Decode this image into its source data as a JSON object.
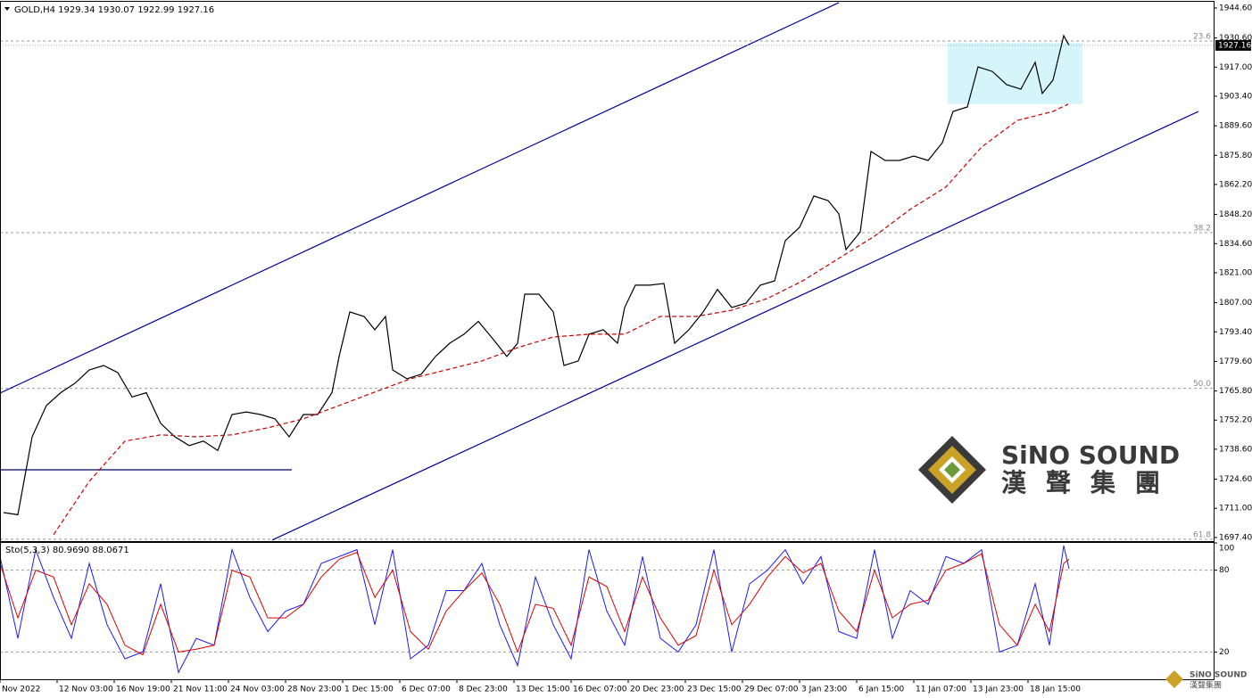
{
  "chart_data": [
    {
      "type": "line",
      "title": "GOLD,H4  1929.34 1930.07 1922.99 1927.16",
      "xlim": [
        0,
        340
      ],
      "ylim": [
        1695.7,
        1947.5
      ],
      "yticks": [
        {
          "value": 1944.6,
          "label": "1944.60"
        },
        {
          "value": 1930.6,
          "label": "1930.60"
        },
        {
          "value": 1917,
          "label": "1917.00"
        },
        {
          "value": 1903.4,
          "label": "1903.40"
        },
        {
          "value": 1889.6,
          "label": "1889.60"
        },
        {
          "value": 1875.8,
          "label": "1875.80"
        },
        {
          "value": 1862.2,
          "label": "1862.20"
        },
        {
          "value": 1848.2,
          "label": "1848.20"
        },
        {
          "value": 1834.6,
          "label": "1834.60"
        },
        {
          "value": 1821,
          "label": "1821.00"
        },
        {
          "value": 1807,
          "label": "1807.00"
        },
        {
          "value": 1793.4,
          "label": "1793.40"
        },
        {
          "value": 1779.6,
          "label": "1779.60"
        },
        {
          "value": 1765.8,
          "label": "1765.80"
        },
        {
          "value": 1752.2,
          "label": "1752.20"
        },
        {
          "value": 1738.6,
          "label": "1738.60"
        },
        {
          "value": 1724.6,
          "label": "1724.60"
        },
        {
          "value": 1711,
          "label": "1711.00"
        },
        {
          "value": 1697.4,
          "label": "1697.40"
        }
      ],
      "series": [
        {
          "color": "#000000",
          "dash": false,
          "x": [
            1,
            5,
            9,
            13,
            17,
            21,
            25,
            29,
            33,
            37,
            41,
            45,
            49,
            53,
            57,
            61,
            65,
            69,
            73,
            77,
            81,
            85,
            89,
            93,
            95,
            98,
            102,
            105,
            108,
            110,
            114,
            118,
            122,
            126,
            130,
            134,
            138,
            142,
            145,
            147,
            151,
            155,
            158,
            162,
            165,
            169,
            173,
            175,
            178,
            182,
            186,
            189,
            193,
            197,
            201,
            205,
            209,
            213,
            217,
            220,
            224,
            228,
            232,
            235,
            237,
            241,
            244,
            248,
            252,
            256,
            260,
            264,
            267,
            271,
            274,
            278,
            282,
            286,
            290,
            292,
            295,
            298,
            299.5
          ],
          "values": [
            1709,
            1708,
            1744.4,
            1759,
            1765,
            1769.4,
            1775.6,
            1777.7,
            1774.4,
            1763,
            1765,
            1750.7,
            1744.4,
            1740.3,
            1742.4,
            1738,
            1754.8,
            1756,
            1754.8,
            1752.8,
            1744.4,
            1754.8,
            1754.8,
            1765,
            1781.9,
            1802.7,
            1800.6,
            1794.4,
            1800.6,
            1775.6,
            1771.5,
            1773.6,
            1781.9,
            1788.1,
            1792.3,
            1798.3,
            1790.3,
            1781.9,
            1788.1,
            1811,
            1811,
            1802.7,
            1777.7,
            1779.8,
            1792.3,
            1794.4,
            1788.1,
            1804.8,
            1815.2,
            1815.2,
            1816,
            1788.1,
            1794.4,
            1802.7,
            1813.2,
            1804.8,
            1806.8,
            1815.2,
            1817.2,
            1836,
            1842.2,
            1856.8,
            1854.7,
            1848.5,
            1831.8,
            1840.1,
            1877.6,
            1873.4,
            1873.4,
            1875.5,
            1873.4,
            1881.7,
            1896.3,
            1898.4,
            1917.1,
            1915,
            1908.8,
            1906.7,
            1919.2,
            1904.7,
            1910.9,
            1931.7,
            1927.16
          ]
        },
        {
          "color": "#cc0000",
          "dash": true,
          "x": [
            15,
            25,
            35,
            45,
            55,
            65,
            75,
            85,
            95,
            105,
            115,
            125,
            135,
            145,
            155,
            165,
            175,
            185,
            195,
            205,
            215,
            225,
            235,
            245,
            255,
            265,
            275,
            285,
            295,
            299.25
          ],
          "values": [
            1698.7,
            1723.6,
            1742.4,
            1745.3,
            1744.4,
            1745.3,
            1748.6,
            1752.8,
            1759,
            1765.3,
            1771.5,
            1775.6,
            1779.8,
            1786,
            1791,
            1792.3,
            1792.3,
            1800.6,
            1800.6,
            1803.5,
            1809,
            1817.3,
            1827.7,
            1838.1,
            1850.6,
            1861,
            1879.7,
            1892.1,
            1896.3,
            1899.7
          ]
        }
      ],
      "trendlines": [
        {
          "color": "#0000a0",
          "x": [
            0,
            235
          ],
          "values": [
            1764.8,
            1947.1
          ]
        },
        {
          "color": "#0000a0",
          "x": [
            76.25,
            335.75
          ],
          "values": [
            1696.2,
            1896.3
          ]
        },
        {
          "color": "#00005a",
          "x": [
            0,
            81.75
          ],
          "values": [
            1729,
            1729
          ]
        }
      ],
      "zone": {
        "color": "#d6f5fb",
        "x": [
          265.5,
          303.25
        ],
        "values": [
          1928.4,
          1899.7
        ]
      },
      "levels": [
        {
          "label": "23.6",
          "value": 1929.2
        },
        {
          "label": "38.2",
          "value": 1839.7
        },
        {
          "label": "50.0",
          "value": 1767
        },
        {
          "label": "61.8",
          "value": 1696.6
        }
      ],
      "last_price": {
        "value": 1927.16,
        "label": "1927.16"
      },
      "watermark": {
        "brand": "SiNO SOUND",
        "chinese": "漢聲集團"
      }
    },
    {
      "type": "line",
      "title": "Sto(5,3,3) 80.9690 88.0671",
      "xlim": [
        0,
        340
      ],
      "ylim": [
        0,
        100
      ],
      "yticks": [
        20,
        80,
        100
      ],
      "levels": [
        80,
        20
      ],
      "xticks": [
        {
          "value": 0,
          "label": "Nov 2022"
        },
        {
          "value": 16,
          "label": "12 Nov 03:00"
        },
        {
          "value": 32,
          "label": "16 Nov 19:00"
        },
        {
          "value": 48,
          "label": "21 Nov 11:00"
        },
        {
          "value": 64,
          "label": "24 Nov 03:00"
        },
        {
          "value": 80,
          "label": "28 Nov 23:00"
        },
        {
          "value": 96,
          "label": "1 Dec 15:00"
        },
        {
          "value": 112,
          "label": "6 Dec 07:00"
        },
        {
          "value": 128,
          "label": "8 Dec 23:00"
        },
        {
          "value": 144,
          "label": "13 Dec 15:00"
        },
        {
          "value": 160,
          "label": "16 Dec 07:00"
        },
        {
          "value": 176,
          "label": "20 Dec 23:00"
        },
        {
          "value": 192,
          "label": "23 Dec 15:00"
        },
        {
          "value": 208,
          "label": "29 Dec 07:00"
        },
        {
          "value": 224,
          "label": "3 Jan 23:00"
        },
        {
          "value": 240,
          "label": "6 Jan 15:00"
        },
        {
          "value": 256,
          "label": "11 Jan 07:00"
        },
        {
          "value": 272,
          "label": "13 Jan 23:00"
        },
        {
          "value": 288,
          "label": "18 Jan 15:00"
        }
      ],
      "series": [
        {
          "color": "#1a1aff",
          "x": [
            0,
            5,
            10,
            15,
            20,
            25,
            30,
            35,
            40,
            45,
            50,
            55,
            60,
            65,
            70,
            75,
            80,
            85,
            90,
            95,
            100,
            105,
            110,
            115,
            120,
            125,
            130,
            135,
            140,
            145,
            150,
            155,
            160,
            165,
            170,
            175,
            180,
            185,
            190,
            195,
            200,
            205,
            210,
            215,
            220,
            225,
            230,
            235,
            240,
            245,
            250,
            255,
            260,
            265,
            270,
            275,
            280,
            285,
            290,
            294,
            298,
            299.5
          ],
          "values": [
            90,
            30,
            95,
            60,
            30,
            85,
            40,
            15,
            20,
            70,
            5,
            30,
            25,
            95,
            60,
            35,
            50,
            55,
            85,
            90,
            95,
            40,
            95,
            15,
            25,
            65,
            65,
            85,
            40,
            10,
            75,
            40,
            15,
            95,
            50,
            25,
            90,
            30,
            20,
            40,
            95,
            20,
            70,
            80,
            95,
            70,
            90,
            35,
            30,
            95,
            30,
            65,
            55,
            90,
            85,
            95,
            20,
            25,
            70,
            25,
            98,
            80.969
          ]
        },
        {
          "color": "#e00000",
          "x": [
            0,
            5,
            10,
            15,
            20,
            25,
            30,
            35,
            40,
            45,
            50,
            55,
            60,
            65,
            70,
            75,
            80,
            85,
            90,
            95,
            100,
            105,
            110,
            115,
            120,
            125,
            130,
            135,
            140,
            145,
            150,
            155,
            160,
            165,
            170,
            175,
            180,
            185,
            190,
            195,
            200,
            205,
            210,
            215,
            220,
            225,
            230,
            235,
            240,
            245,
            250,
            255,
            260,
            265,
            270,
            275,
            280,
            285,
            290,
            294,
            298,
            299.5
          ],
          "values": [
            85,
            45,
            80,
            75,
            40,
            70,
            55,
            25,
            18,
            55,
            20,
            22,
            25,
            80,
            75,
            45,
            45,
            55,
            75,
            88,
            93,
            60,
            80,
            35,
            22,
            50,
            65,
            78,
            55,
            20,
            55,
            52,
            25,
            75,
            68,
            35,
            75,
            45,
            25,
            32,
            80,
            40,
            55,
            75,
            90,
            78,
            85,
            50,
            35,
            80,
            45,
            55,
            58,
            80,
            85,
            92,
            40,
            25,
            55,
            35,
            85,
            88.0671
          ]
        }
      ]
    }
  ]
}
